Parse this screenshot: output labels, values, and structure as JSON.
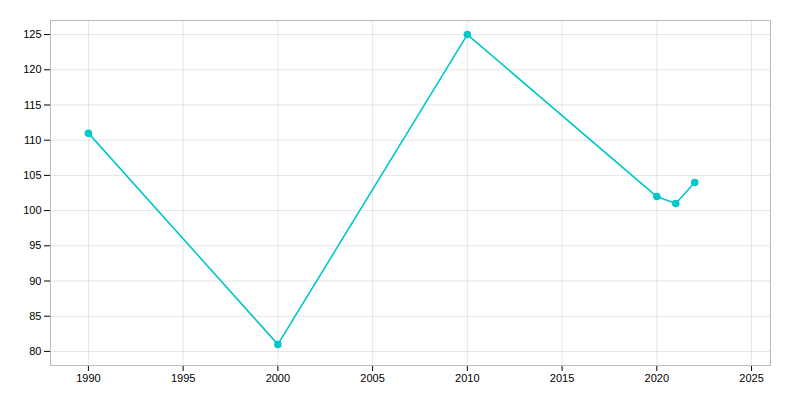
{
  "chart_data": {
    "type": "line",
    "x": [
      1990,
      2000,
      2010,
      2020,
      2021,
      2022
    ],
    "values": [
      111,
      81,
      125,
      102,
      101,
      104
    ],
    "color": "#00C8C8",
    "marker": "circle",
    "xlim": [
      1988,
      2026
    ],
    "ylim": [
      78,
      127
    ],
    "xticks": [
      1990,
      1995,
      2000,
      2005,
      2010,
      2015,
      2020,
      2025
    ],
    "yticks": [
      80,
      85,
      90,
      95,
      100,
      105,
      110,
      115,
      120,
      125
    ],
    "grid": true
  }
}
